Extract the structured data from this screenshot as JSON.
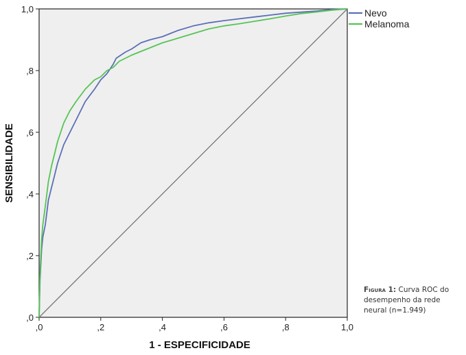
{
  "caption": {
    "label": "Figura 1:",
    "text": "Curva ROC do desempenho da rede neural (n=1.949)"
  },
  "chart_data": {
    "type": "line",
    "xlabel": "1 - ESPECIFICIDADE",
    "ylabel": "SENSIBILIDADE",
    "xlim": [
      0,
      1
    ],
    "ylim": [
      0,
      1
    ],
    "xticks": [
      0,
      0.2,
      0.4,
      0.6,
      0.8,
      1.0
    ],
    "yticks": [
      0,
      0.2,
      0.4,
      0.6,
      0.8,
      1.0
    ],
    "xtick_labels": [
      ",0",
      ",2",
      ",4",
      ",6",
      ",8",
      "1,0"
    ],
    "ytick_labels": [
      ",0",
      ",2",
      ",4",
      ",6",
      ",8",
      "1,0"
    ],
    "grid": false,
    "legend_position": "top-right",
    "reference_line": {
      "x": [
        0,
        1
      ],
      "y": [
        0,
        1
      ],
      "color": "#777777"
    },
    "series": [
      {
        "name": "Nevo",
        "color": "#5b6fb5",
        "x": [
          0,
          0.003,
          0.008,
          0.012,
          0.02,
          0.03,
          0.04,
          0.05,
          0.06,
          0.07,
          0.08,
          0.1,
          0.12,
          0.15,
          0.18,
          0.2,
          0.22,
          0.24,
          0.25,
          0.28,
          0.3,
          0.33,
          0.36,
          0.4,
          0.45,
          0.5,
          0.55,
          0.6,
          0.65,
          0.7,
          0.75,
          0.8,
          0.9,
          0.95,
          1.0
        ],
        "y": [
          0,
          0.12,
          0.22,
          0.26,
          0.3,
          0.38,
          0.42,
          0.46,
          0.5,
          0.53,
          0.56,
          0.6,
          0.64,
          0.7,
          0.74,
          0.77,
          0.79,
          0.82,
          0.84,
          0.86,
          0.87,
          0.89,
          0.9,
          0.91,
          0.93,
          0.945,
          0.955,
          0.962,
          0.968,
          0.974,
          0.98,
          0.986,
          0.993,
          0.998,
          1.0
        ]
      },
      {
        "name": "Melanoma",
        "color": "#55c455",
        "x": [
          0,
          0.003,
          0.008,
          0.012,
          0.02,
          0.03,
          0.04,
          0.05,
          0.06,
          0.07,
          0.08,
          0.1,
          0.12,
          0.15,
          0.18,
          0.2,
          0.22,
          0.24,
          0.26,
          0.3,
          0.35,
          0.4,
          0.45,
          0.5,
          0.55,
          0.6,
          0.65,
          0.7,
          0.75,
          0.8,
          0.85,
          0.9,
          0.95,
          1.0
        ],
        "y": [
          0,
          0.14,
          0.25,
          0.3,
          0.36,
          0.44,
          0.49,
          0.53,
          0.57,
          0.6,
          0.63,
          0.67,
          0.7,
          0.74,
          0.77,
          0.78,
          0.8,
          0.81,
          0.83,
          0.85,
          0.87,
          0.89,
          0.905,
          0.92,
          0.935,
          0.945,
          0.952,
          0.96,
          0.968,
          0.977,
          0.985,
          0.99,
          0.996,
          1.0
        ]
      }
    ]
  }
}
